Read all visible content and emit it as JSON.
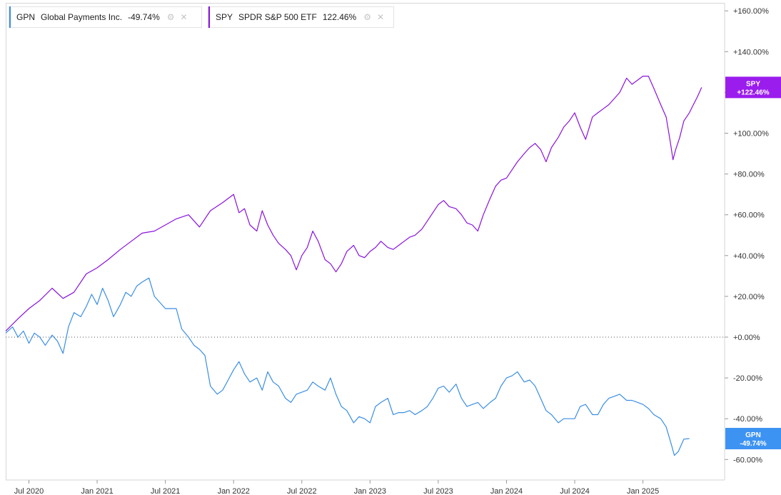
{
  "legend": [
    {
      "symbol": "GPN",
      "name": "Global Payments Inc.",
      "change": "-49.74%",
      "color": "#3a8ee6",
      "icons": [
        "settings-icon",
        "close-icon"
      ]
    },
    {
      "symbol": "SPY",
      "name": "SPDR S&P 500 ETF",
      "change": "122.46%",
      "color": "#8a12e0",
      "icons": [
        "settings-icon",
        "close-icon"
      ]
    }
  ],
  "badges": [
    {
      "series": "SPY",
      "line1": "SPY",
      "line2": "+122.46%",
      "color": "#9b1ded"
    },
    {
      "series": "GPN",
      "line1": "GPN",
      "line2": "-49.74%",
      "color": "#3d93f2"
    }
  ],
  "chart_data": {
    "type": "line",
    "y_unit": "%",
    "ylim": [
      -60,
      160
    ],
    "y_ticks": [
      "+160.00%",
      "+140.00%",
      "+120.00%",
      "+100.00%",
      "+80.00%",
      "+60.00%",
      "+40.00%",
      "+20.00%",
      "+0.00%",
      "-20.00%",
      "-40.00%",
      "-60.00%"
    ],
    "y_tick_values": [
      160,
      140,
      120,
      100,
      80,
      60,
      40,
      20,
      0,
      -20,
      -40,
      -60
    ],
    "x_ticks": [
      "Jul 2020",
      "Jan 2021",
      "Jul 2021",
      "Jan 2022",
      "Jul 2022",
      "Jan 2023",
      "Jul 2023",
      "Jan 2024",
      "Jul 2024",
      "Jan 2025"
    ],
    "x_tick_values": [
      2020.5,
      2021.0,
      2021.5,
      2022.0,
      2022.5,
      2023.0,
      2023.5,
      2024.0,
      2024.5,
      2025.0
    ],
    "xlim": [
      2020.33,
      2025.52
    ],
    "zero_line": "dotted",
    "series": [
      {
        "name": "SPY",
        "color": "#8a12e0",
        "points": [
          [
            2020.33,
            3
          ],
          [
            2020.42,
            9
          ],
          [
            2020.5,
            14
          ],
          [
            2020.58,
            18
          ],
          [
            2020.67,
            24
          ],
          [
            2020.75,
            19
          ],
          [
            2020.83,
            22
          ],
          [
            2020.92,
            31
          ],
          [
            2021.0,
            34
          ],
          [
            2021.08,
            38
          ],
          [
            2021.17,
            43
          ],
          [
            2021.25,
            47
          ],
          [
            2021.33,
            51
          ],
          [
            2021.42,
            52
          ],
          [
            2021.5,
            55
          ],
          [
            2021.58,
            58
          ],
          [
            2021.67,
            60
          ],
          [
            2021.75,
            54
          ],
          [
            2021.83,
            62
          ],
          [
            2021.92,
            66
          ],
          [
            2022.0,
            70
          ],
          [
            2022.04,
            61
          ],
          [
            2022.08,
            63
          ],
          [
            2022.12,
            55
          ],
          [
            2022.17,
            52
          ],
          [
            2022.21,
            62
          ],
          [
            2022.25,
            55
          ],
          [
            2022.29,
            50
          ],
          [
            2022.33,
            46
          ],
          [
            2022.38,
            43
          ],
          [
            2022.42,
            40
          ],
          [
            2022.46,
            33
          ],
          [
            2022.5,
            40
          ],
          [
            2022.54,
            44
          ],
          [
            2022.58,
            52
          ],
          [
            2022.62,
            47
          ],
          [
            2022.67,
            38
          ],
          [
            2022.71,
            36
          ],
          [
            2022.75,
            32
          ],
          [
            2022.79,
            36
          ],
          [
            2022.83,
            42
          ],
          [
            2022.88,
            45
          ],
          [
            2022.92,
            40
          ],
          [
            2022.96,
            39
          ],
          [
            2023.0,
            42
          ],
          [
            2023.04,
            44
          ],
          [
            2023.08,
            47
          ],
          [
            2023.13,
            44
          ],
          [
            2023.17,
            43
          ],
          [
            2023.21,
            45
          ],
          [
            2023.25,
            47
          ],
          [
            2023.29,
            49
          ],
          [
            2023.33,
            50
          ],
          [
            2023.38,
            53
          ],
          [
            2023.42,
            57
          ],
          [
            2023.46,
            61
          ],
          [
            2023.5,
            65
          ],
          [
            2023.54,
            67
          ],
          [
            2023.58,
            64
          ],
          [
            2023.63,
            63
          ],
          [
            2023.67,
            60
          ],
          [
            2023.71,
            56
          ],
          [
            2023.75,
            55
          ],
          [
            2023.79,
            52
          ],
          [
            2023.83,
            60
          ],
          [
            2023.88,
            68
          ],
          [
            2023.92,
            74
          ],
          [
            2023.96,
            77
          ],
          [
            2024.0,
            78
          ],
          [
            2024.04,
            82
          ],
          [
            2024.08,
            86
          ],
          [
            2024.13,
            90
          ],
          [
            2024.17,
            93
          ],
          [
            2024.21,
            95
          ],
          [
            2024.25,
            92
          ],
          [
            2024.29,
            86
          ],
          [
            2024.33,
            93
          ],
          [
            2024.38,
            98
          ],
          [
            2024.42,
            103
          ],
          [
            2024.46,
            106
          ],
          [
            2024.5,
            110
          ],
          [
            2024.54,
            103
          ],
          [
            2024.58,
            97
          ],
          [
            2024.63,
            108
          ],
          [
            2024.67,
            110
          ],
          [
            2024.71,
            112
          ],
          [
            2024.75,
            114
          ],
          [
            2024.79,
            117
          ],
          [
            2024.83,
            120
          ],
          [
            2024.88,
            127
          ],
          [
            2024.92,
            124
          ],
          [
            2025.0,
            128
          ],
          [
            2025.04,
            128
          ],
          [
            2025.08,
            122
          ],
          [
            2025.13,
            114
          ],
          [
            2025.17,
            108
          ],
          [
            2025.2,
            96
          ],
          [
            2025.22,
            87
          ],
          [
            2025.24,
            92
          ],
          [
            2025.27,
            98
          ],
          [
            2025.3,
            106
          ],
          [
            2025.34,
            110
          ],
          [
            2025.37,
            114
          ],
          [
            2025.4,
            118
          ],
          [
            2025.43,
            122.46
          ]
        ]
      },
      {
        "name": "GPN",
        "color": "#3a8ee6",
        "points": [
          [
            2020.33,
            2
          ],
          [
            2020.38,
            5
          ],
          [
            2020.42,
            0
          ],
          [
            2020.46,
            3
          ],
          [
            2020.5,
            -3
          ],
          [
            2020.54,
            2
          ],
          [
            2020.58,
            0
          ],
          [
            2020.62,
            -4
          ],
          [
            2020.67,
            1
          ],
          [
            2020.71,
            -2
          ],
          [
            2020.75,
            -8
          ],
          [
            2020.79,
            5
          ],
          [
            2020.83,
            12
          ],
          [
            2020.88,
            10
          ],
          [
            2020.92,
            15
          ],
          [
            2020.96,
            21
          ],
          [
            2021.0,
            16
          ],
          [
            2021.04,
            24
          ],
          [
            2021.08,
            18
          ],
          [
            2021.12,
            10
          ],
          [
            2021.17,
            16
          ],
          [
            2021.21,
            22
          ],
          [
            2021.25,
            20
          ],
          [
            2021.29,
            25
          ],
          [
            2021.33,
            27
          ],
          [
            2021.38,
            29
          ],
          [
            2021.42,
            20
          ],
          [
            2021.46,
            17
          ],
          [
            2021.5,
            14
          ],
          [
            2021.54,
            14
          ],
          [
            2021.58,
            14
          ],
          [
            2021.62,
            4
          ],
          [
            2021.67,
            0
          ],
          [
            2021.71,
            -4
          ],
          [
            2021.75,
            -6
          ],
          [
            2021.79,
            -9
          ],
          [
            2021.83,
            -24
          ],
          [
            2021.88,
            -28
          ],
          [
            2021.92,
            -26
          ],
          [
            2021.96,
            -21
          ],
          [
            2022.0,
            -16
          ],
          [
            2022.04,
            -12
          ],
          [
            2022.08,
            -18
          ],
          [
            2022.12,
            -22
          ],
          [
            2022.17,
            -20
          ],
          [
            2022.21,
            -26
          ],
          [
            2022.25,
            -17
          ],
          [
            2022.29,
            -22
          ],
          [
            2022.33,
            -24
          ],
          [
            2022.38,
            -30
          ],
          [
            2022.42,
            -32
          ],
          [
            2022.46,
            -28
          ],
          [
            2022.5,
            -27
          ],
          [
            2022.54,
            -26
          ],
          [
            2022.58,
            -22
          ],
          [
            2022.62,
            -24
          ],
          [
            2022.67,
            -26
          ],
          [
            2022.71,
            -20
          ],
          [
            2022.75,
            -28
          ],
          [
            2022.79,
            -34
          ],
          [
            2022.83,
            -36
          ],
          [
            2022.88,
            -42
          ],
          [
            2022.92,
            -39
          ],
          [
            2022.96,
            -40
          ],
          [
            2023.0,
            -42
          ],
          [
            2023.04,
            -34
          ],
          [
            2023.08,
            -32
          ],
          [
            2023.13,
            -30
          ],
          [
            2023.17,
            -38
          ],
          [
            2023.21,
            -37
          ],
          [
            2023.25,
            -37
          ],
          [
            2023.29,
            -36
          ],
          [
            2023.33,
            -38
          ],
          [
            2023.38,
            -36
          ],
          [
            2023.42,
            -34
          ],
          [
            2023.46,
            -30
          ],
          [
            2023.5,
            -25
          ],
          [
            2023.54,
            -24
          ],
          [
            2023.58,
            -27
          ],
          [
            2023.63,
            -23
          ],
          [
            2023.67,
            -30
          ],
          [
            2023.71,
            -34
          ],
          [
            2023.75,
            -33
          ],
          [
            2023.79,
            -32
          ],
          [
            2023.83,
            -35
          ],
          [
            2023.88,
            -32
          ],
          [
            2023.92,
            -30
          ],
          [
            2023.96,
            -24
          ],
          [
            2024.0,
            -20
          ],
          [
            2024.04,
            -19
          ],
          [
            2024.08,
            -17
          ],
          [
            2024.13,
            -22
          ],
          [
            2024.17,
            -21
          ],
          [
            2024.21,
            -24
          ],
          [
            2024.25,
            -30
          ],
          [
            2024.29,
            -36
          ],
          [
            2024.33,
            -38
          ],
          [
            2024.38,
            -42
          ],
          [
            2024.42,
            -40
          ],
          [
            2024.46,
            -40
          ],
          [
            2024.5,
            -40
          ],
          [
            2024.54,
            -34
          ],
          [
            2024.58,
            -33
          ],
          [
            2024.63,
            -38
          ],
          [
            2024.67,
            -38
          ],
          [
            2024.71,
            -33
          ],
          [
            2024.75,
            -30
          ],
          [
            2024.79,
            -29
          ],
          [
            2024.83,
            -28
          ],
          [
            2024.88,
            -31
          ],
          [
            2024.92,
            -31
          ],
          [
            2025.0,
            -33
          ],
          [
            2025.04,
            -35
          ],
          [
            2025.08,
            -38
          ],
          [
            2025.13,
            -40
          ],
          [
            2025.17,
            -44
          ],
          [
            2025.21,
            -53
          ],
          [
            2025.23,
            -58
          ],
          [
            2025.26,
            -56
          ],
          [
            2025.3,
            -50
          ],
          [
            2025.34,
            -49.74
          ]
        ]
      }
    ]
  }
}
